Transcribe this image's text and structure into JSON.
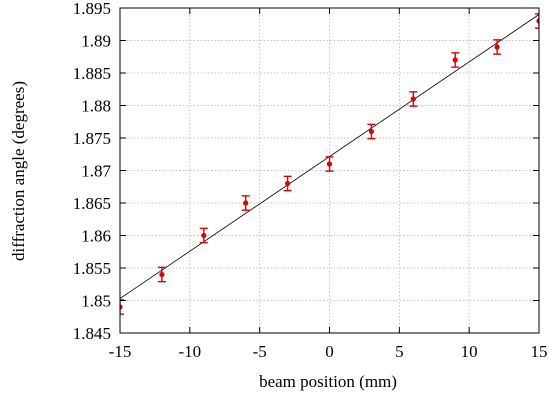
{
  "chart_data": {
    "type": "scatter",
    "title": "",
    "xlabel": "beam position (mm)",
    "ylabel": "diffraction angle (degrees)",
    "xlim": [
      -15,
      15
    ],
    "ylim": [
      1.845,
      1.895
    ],
    "x_ticks": [
      "-15",
      "-10",
      "-5",
      "0",
      "5",
      "10",
      "15"
    ],
    "y_ticks": [
      "1.845",
      "1.85",
      "1.855",
      "1.86",
      "1.865",
      "1.87",
      "1.875",
      "1.88",
      "1.885",
      "1.89",
      "1.895"
    ],
    "grid": true,
    "points": [
      {
        "x": -15,
        "y": 1.849,
        "err": 0.0011
      },
      {
        "x": -12,
        "y": 1.854,
        "err": 0.0011
      },
      {
        "x": -9,
        "y": 1.86,
        "err": 0.0011
      },
      {
        "x": -6,
        "y": 1.865,
        "err": 0.0011
      },
      {
        "x": -3,
        "y": 1.868,
        "err": 0.0011
      },
      {
        "x": 0,
        "y": 1.871,
        "err": 0.0011
      },
      {
        "x": 3,
        "y": 1.876,
        "err": 0.0011
      },
      {
        "x": 6,
        "y": 1.881,
        "err": 0.0011
      },
      {
        "x": 9,
        "y": 1.887,
        "err": 0.0011
      },
      {
        "x": 12,
        "y": 1.889,
        "err": 0.0011
      },
      {
        "x": 15,
        "y": 1.893,
        "err": 0.0011
      }
    ],
    "fit_line": {
      "x": [
        -15,
        15
      ],
      "y": [
        1.8503,
        1.894
      ]
    },
    "colors": {
      "points": "#e00000",
      "fit_line": "#000000",
      "grid": "#b0b0b0"
    }
  }
}
